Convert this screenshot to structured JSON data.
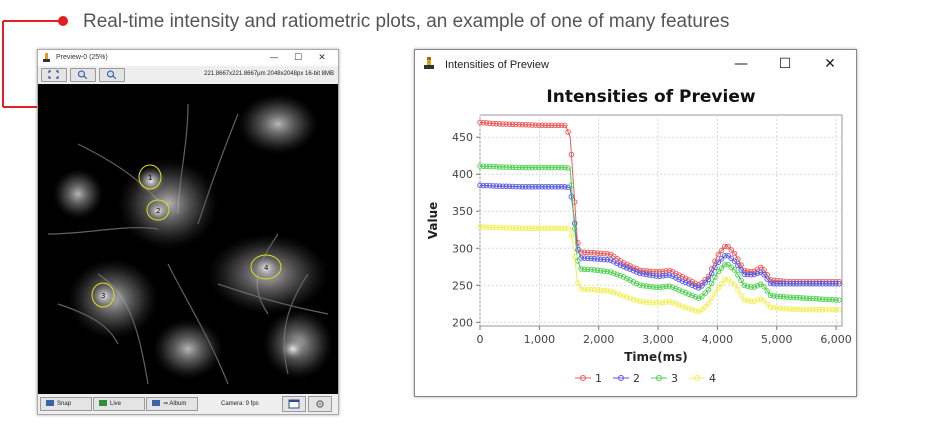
{
  "caption": "Real-time intensity and ratiometric plots, an example of one of many features",
  "colors": {
    "accent": "#e02020",
    "bg": "#ffffff"
  },
  "preview": {
    "title": "Preview-0 (25%)",
    "controls": {
      "minimize": "—",
      "maximize": "☐",
      "close": "✕"
    },
    "toolbar_icons": [
      "fit-icon",
      "zoom-in-icon",
      "zoom-out-icon"
    ],
    "info": "221.8667x221.8667μm  2048x2048px  16-bit 8MB",
    "rois": [
      "1",
      "2",
      "3",
      "4"
    ],
    "bottom": {
      "snap": "Snap",
      "live": "Live",
      "album": "⇒ Album",
      "camera": "Camera: 9 fps"
    }
  },
  "chart_window": {
    "title": "Intensities of Preview",
    "controls": {
      "minimize": "—",
      "maximize": "☐",
      "close": "✕"
    }
  },
  "chart_data": {
    "type": "line",
    "title": "Intensities of Preview",
    "xlabel": "Time(ms)",
    "ylabel": "Value",
    "xlim": [
      0,
      6100
    ],
    "ylim": [
      195,
      480
    ],
    "xticks": [
      "0",
      "1,000",
      "2,000",
      "3,000",
      "4,000",
      "5,000",
      "6,000"
    ],
    "xtick_values": [
      0,
      1000,
      2000,
      3000,
      4000,
      5000,
      6000
    ],
    "yticks": [
      "200",
      "250",
      "300",
      "350",
      "400",
      "450"
    ],
    "ytick_values": [
      200,
      250,
      300,
      350,
      400,
      450
    ],
    "grid": true,
    "legend_position": "bottom",
    "series": [
      {
        "name": "1",
        "color": "#e85a5a",
        "points": [
          [
            0,
            470
          ],
          [
            300,
            468
          ],
          [
            700,
            467
          ],
          [
            1100,
            466
          ],
          [
            1440,
            466
          ],
          [
            1520,
            450
          ],
          [
            1580,
            380
          ],
          [
            1640,
            310
          ],
          [
            1700,
            295
          ],
          [
            1900,
            294
          ],
          [
            2200,
            292
          ],
          [
            2400,
            281
          ],
          [
            2700,
            270
          ],
          [
            3000,
            268
          ],
          [
            3200,
            270
          ],
          [
            3400,
            262
          ],
          [
            3700,
            250
          ],
          [
            3850,
            262
          ],
          [
            4000,
            290
          ],
          [
            4150,
            305
          ],
          [
            4300,
            292
          ],
          [
            4450,
            270
          ],
          [
            4600,
            268
          ],
          [
            4750,
            275
          ],
          [
            4900,
            257
          ],
          [
            5200,
            255
          ],
          [
            5600,
            255
          ],
          [
            6050,
            255
          ]
        ]
      },
      {
        "name": "2",
        "color": "#5a5ae0",
        "points": [
          [
            0,
            385
          ],
          [
            300,
            384
          ],
          [
            700,
            383
          ],
          [
            1100,
            383
          ],
          [
            1440,
            383
          ],
          [
            1520,
            382
          ],
          [
            1580,
            345
          ],
          [
            1640,
            300
          ],
          [
            1700,
            287
          ],
          [
            1900,
            286
          ],
          [
            2200,
            284
          ],
          [
            2400,
            276
          ],
          [
            2700,
            266
          ],
          [
            3000,
            262
          ],
          [
            3200,
            264
          ],
          [
            3400,
            256
          ],
          [
            3700,
            246
          ],
          [
            3850,
            258
          ],
          [
            4000,
            280
          ],
          [
            4150,
            292
          ],
          [
            4300,
            282
          ],
          [
            4450,
            265
          ],
          [
            4600,
            264
          ],
          [
            4750,
            268
          ],
          [
            4900,
            252
          ],
          [
            5200,
            252
          ],
          [
            5600,
            252
          ],
          [
            6050,
            252
          ]
        ]
      },
      {
        "name": "3",
        "color": "#4fd04f",
        "points": [
          [
            0,
            411
          ],
          [
            300,
            410
          ],
          [
            700,
            409
          ],
          [
            1100,
            409
          ],
          [
            1440,
            409
          ],
          [
            1520,
            408
          ],
          [
            1580,
            340
          ],
          [
            1640,
            285
          ],
          [
            1700,
            272
          ],
          [
            1900,
            271
          ],
          [
            2200,
            268
          ],
          [
            2400,
            262
          ],
          [
            2700,
            250
          ],
          [
            3000,
            247
          ],
          [
            3200,
            249
          ],
          [
            3400,
            242
          ],
          [
            3700,
            232
          ],
          [
            3850,
            244
          ],
          [
            4000,
            267
          ],
          [
            4150,
            280
          ],
          [
            4300,
            270
          ],
          [
            4450,
            250
          ],
          [
            4600,
            247
          ],
          [
            4750,
            252
          ],
          [
            4900,
            236
          ],
          [
            5200,
            234
          ],
          [
            5600,
            232
          ],
          [
            6050,
            230
          ]
        ]
      },
      {
        "name": "4",
        "color": "#f0f05a",
        "points": [
          [
            0,
            329
          ],
          [
            300,
            328
          ],
          [
            700,
            327
          ],
          [
            1100,
            327
          ],
          [
            1440,
            327
          ],
          [
            1520,
            326
          ],
          [
            1580,
            300
          ],
          [
            1640,
            255
          ],
          [
            1700,
            245
          ],
          [
            1900,
            244
          ],
          [
            2200,
            242
          ],
          [
            2400,
            236
          ],
          [
            2700,
            228
          ],
          [
            3000,
            226
          ],
          [
            3200,
            228
          ],
          [
            3400,
            222
          ],
          [
            3700,
            214
          ],
          [
            3850,
            225
          ],
          [
            4000,
            245
          ],
          [
            4150,
            260
          ],
          [
            4300,
            250
          ],
          [
            4450,
            230
          ],
          [
            4600,
            228
          ],
          [
            4750,
            232
          ],
          [
            4900,
            220
          ],
          [
            5200,
            218
          ],
          [
            5600,
            217
          ],
          [
            6050,
            217
          ]
        ]
      }
    ]
  }
}
